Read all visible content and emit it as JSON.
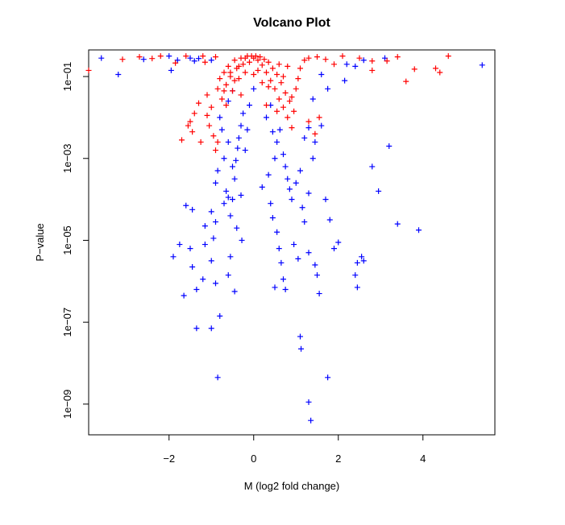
{
  "chart_data": {
    "type": "scatter",
    "title": "Volcano Plot",
    "xlabel": "M (log2 fold change)",
    "ylabel": "P−value",
    "xlim": [
      -3.9,
      5.7
    ],
    "ylog": true,
    "ylim_log10": [
      -9.75,
      -0.35
    ],
    "x_ticks": [
      -2,
      0,
      2,
      4
    ],
    "x_tick_labels": [
      "−2",
      "0",
      "2",
      "4"
    ],
    "y_ticks_log10": [
      -1,
      -3,
      -5,
      -7,
      -9
    ],
    "y_tick_labels": [
      "1e−01",
      "1e−03",
      "1e−05",
      "1e−07",
      "1e−09"
    ],
    "grid": false,
    "legend": "none",
    "colors": {
      "significant": "#0000ff",
      "not_significant": "#ff0000"
    },
    "series": [
      {
        "color": "#0000ff",
        "points": [
          [
            -3.6,
            -0.55
          ],
          [
            -3.2,
            -0.95
          ],
          [
            -2.6,
            -0.58
          ],
          [
            -2.0,
            -0.5
          ],
          [
            -1.95,
            -0.85
          ],
          [
            -1.8,
            -0.6
          ],
          [
            -1.5,
            -0.55
          ],
          [
            -1.4,
            -0.62
          ],
          [
            -1.3,
            -0.56
          ],
          [
            -1.0,
            -0.6
          ],
          [
            -1.6,
            -4.15
          ],
          [
            -1.0,
            -4.3
          ],
          [
            -0.9,
            -4.55
          ],
          [
            -0.7,
            -4.1
          ],
          [
            -0.6,
            -3.95
          ],
          [
            -0.55,
            -4.4
          ],
          [
            -0.5,
            -3.2
          ],
          [
            -0.45,
            -3.5
          ],
          [
            -0.42,
            -3.05
          ],
          [
            -0.38,
            -2.75
          ],
          [
            -0.35,
            -2.5
          ],
          [
            -0.3,
            -2.2
          ],
          [
            -0.25,
            -1.9
          ],
          [
            -0.2,
            -2.8
          ],
          [
            -0.6,
            -2.6
          ],
          [
            -0.7,
            -3.0
          ],
          [
            -0.75,
            -2.3
          ],
          [
            -0.8,
            -2.0
          ],
          [
            -0.85,
            -3.3
          ],
          [
            -0.9,
            -3.6
          ],
          [
            -0.65,
            -3.8
          ],
          [
            -0.5,
            -4.0
          ],
          [
            -0.4,
            -4.7
          ],
          [
            -0.3,
            -3.9
          ],
          [
            -0.28,
            -5.0
          ],
          [
            -1.9,
            -5.4
          ],
          [
            -1.75,
            -5.1
          ],
          [
            -1.5,
            -5.2
          ],
          [
            -1.45,
            -5.65
          ],
          [
            -1.2,
            -5.95
          ],
          [
            -1.15,
            -5.1
          ],
          [
            -1.0,
            -5.5
          ],
          [
            -0.9,
            -6.05
          ],
          [
            -0.6,
            -5.85
          ],
          [
            -0.55,
            -5.4
          ],
          [
            -0.45,
            -6.25
          ],
          [
            -1.65,
            -6.35
          ],
          [
            -1.35,
            -6.2
          ],
          [
            -0.8,
            -6.85
          ],
          [
            -1.0,
            -7.15
          ],
          [
            -1.35,
            -7.15
          ],
          [
            -0.85,
            -8.35
          ],
          [
            -1.45,
            -4.25
          ],
          [
            -1.15,
            -4.65
          ],
          [
            -0.95,
            -4.95
          ],
          [
            0.2,
            -3.7
          ],
          [
            0.35,
            -3.4
          ],
          [
            0.5,
            -3.0
          ],
          [
            0.55,
            -2.6
          ],
          [
            0.62,
            -2.3
          ],
          [
            0.7,
            -2.9
          ],
          [
            0.75,
            -3.2
          ],
          [
            0.8,
            -3.5
          ],
          [
            0.85,
            -3.75
          ],
          [
            0.9,
            -4.0
          ],
          [
            1.0,
            -3.6
          ],
          [
            1.1,
            -3.3
          ],
          [
            1.15,
            -4.2
          ],
          [
            1.2,
            -4.55
          ],
          [
            1.3,
            -3.85
          ],
          [
            1.4,
            -3.0
          ],
          [
            1.45,
            -2.6
          ],
          [
            1.6,
            -2.2
          ],
          [
            1.7,
            -4.0
          ],
          [
            1.8,
            -4.5
          ],
          [
            1.9,
            -5.2
          ],
          [
            0.4,
            -4.1
          ],
          [
            0.45,
            -4.45
          ],
          [
            0.55,
            -4.8
          ],
          [
            0.6,
            -5.2
          ],
          [
            0.65,
            -5.55
          ],
          [
            0.7,
            -5.95
          ],
          [
            0.5,
            -6.15
          ],
          [
            0.75,
            -6.2
          ],
          [
            0.95,
            -5.1
          ],
          [
            1.05,
            -5.45
          ],
          [
            1.3,
            -5.3
          ],
          [
            1.45,
            -5.6
          ],
          [
            1.5,
            -5.85
          ],
          [
            1.55,
            -6.3
          ],
          [
            1.1,
            -7.35
          ],
          [
            1.12,
            -7.65
          ],
          [
            1.35,
            -9.4
          ],
          [
            1.3,
            -8.95
          ],
          [
            1.75,
            -8.35
          ],
          [
            2.0,
            -5.05
          ],
          [
            2.4,
            -5.85
          ],
          [
            2.45,
            -5.55
          ],
          [
            2.55,
            -5.4
          ],
          [
            2.6,
            -5.5
          ],
          [
            2.45,
            -6.15
          ],
          [
            2.8,
            -3.2
          ],
          [
            2.95,
            -3.8
          ],
          [
            3.2,
            -2.7
          ],
          [
            3.4,
            -4.6
          ],
          [
            3.9,
            -4.75
          ],
          [
            5.4,
            -0.72
          ],
          [
            2.4,
            -0.75
          ],
          [
            2.6,
            -0.6
          ],
          [
            3.1,
            -0.55
          ],
          [
            2.15,
            -1.1
          ],
          [
            2.2,
            -0.7
          ],
          [
            1.6,
            -0.95
          ],
          [
            1.75,
            -1.3
          ],
          [
            1.4,
            -1.55
          ],
          [
            1.3,
            -2.25
          ],
          [
            1.2,
            -2.5
          ],
          [
            0.3,
            -2.0
          ],
          [
            0.4,
            -1.7
          ],
          [
            0.45,
            -2.35
          ],
          [
            -0.15,
            -2.3
          ],
          [
            -0.1,
            -1.7
          ],
          [
            0.0,
            -1.3
          ],
          [
            -0.5,
            -1.35
          ],
          [
            -0.6,
            -1.6
          ]
        ]
      },
      {
        "color": "#ff0000",
        "points": [
          [
            -3.9,
            -0.85
          ],
          [
            -3.1,
            -0.58
          ],
          [
            -2.7,
            -0.52
          ],
          [
            -2.4,
            -0.56
          ],
          [
            -2.2,
            -0.5
          ],
          [
            -1.85,
            -0.67
          ],
          [
            -1.6,
            -0.5
          ],
          [
            -1.2,
            -0.5
          ],
          [
            -1.15,
            -0.65
          ],
          [
            -0.9,
            -0.52
          ],
          [
            -1.5,
            -2.1
          ],
          [
            -1.45,
            -2.35
          ],
          [
            -1.4,
            -1.9
          ],
          [
            -1.3,
            -1.65
          ],
          [
            -1.25,
            -2.6
          ],
          [
            -1.1,
            -1.45
          ],
          [
            -1.05,
            -2.2
          ],
          [
            -1.0,
            -1.75
          ],
          [
            -0.95,
            -2.45
          ],
          [
            -0.85,
            -1.3
          ],
          [
            -0.8,
            -1.05
          ],
          [
            -0.75,
            -1.55
          ],
          [
            -0.7,
            -0.9
          ],
          [
            -0.65,
            -1.2
          ],
          [
            -0.6,
            -0.75
          ],
          [
            -0.55,
            -1.0
          ],
          [
            -0.5,
            -1.35
          ],
          [
            -0.45,
            -0.6
          ],
          [
            -0.4,
            -0.8
          ],
          [
            -0.35,
            -1.05
          ],
          [
            -0.3,
            -0.55
          ],
          [
            -0.25,
            -0.7
          ],
          [
            -0.2,
            -0.9
          ],
          [
            -0.15,
            -0.5
          ],
          [
            -0.1,
            -0.65
          ],
          [
            -0.05,
            -0.5
          ],
          [
            0.0,
            -0.55
          ],
          [
            0.05,
            -0.5
          ],
          [
            0.1,
            -0.6
          ],
          [
            0.15,
            -0.52
          ],
          [
            0.2,
            -0.72
          ],
          [
            0.25,
            -0.58
          ],
          [
            0.3,
            -0.9
          ],
          [
            0.35,
            -0.65
          ],
          [
            0.4,
            -1.1
          ],
          [
            0.45,
            -0.8
          ],
          [
            0.5,
            -1.3
          ],
          [
            0.55,
            -0.95
          ],
          [
            0.6,
            -1.55
          ],
          [
            0.65,
            -1.15
          ],
          [
            0.7,
            -1.75
          ],
          [
            0.75,
            -1.4
          ],
          [
            0.8,
            -2.0
          ],
          [
            0.85,
            -1.6
          ],
          [
            0.9,
            -2.25
          ],
          [
            0.95,
            -1.85
          ],
          [
            1.0,
            -1.3
          ],
          [
            1.05,
            -1.05
          ],
          [
            1.1,
            -0.8
          ],
          [
            1.2,
            -0.6
          ],
          [
            1.3,
            -0.55
          ],
          [
            1.5,
            -0.52
          ],
          [
            1.7,
            -0.58
          ],
          [
            1.9,
            -0.7
          ],
          [
            2.1,
            -0.5
          ],
          [
            2.5,
            -0.55
          ],
          [
            2.8,
            -0.62
          ],
          [
            3.15,
            -0.62
          ],
          [
            3.4,
            -0.52
          ],
          [
            3.6,
            -1.12
          ],
          [
            3.8,
            -0.82
          ],
          [
            4.3,
            -0.8
          ],
          [
            4.4,
            -0.9
          ],
          [
            4.6,
            -0.5
          ],
          [
            2.8,
            -0.85
          ],
          [
            -0.85,
            -2.6
          ],
          [
            -0.9,
            -2.8
          ],
          [
            -1.7,
            -2.55
          ],
          [
            -1.55,
            -2.2
          ],
          [
            -1.1,
            -1.95
          ],
          [
            -0.65,
            -1.7
          ],
          [
            0.3,
            -1.7
          ],
          [
            0.55,
            -1.85
          ],
          [
            0.9,
            -1.5
          ],
          [
            1.3,
            -2.1
          ],
          [
            1.45,
            -2.4
          ],
          [
            1.55,
            -2.0
          ],
          [
            -0.2,
            -0.55
          ],
          [
            0.1,
            -0.85
          ],
          [
            0.35,
            -1.25
          ],
          [
            -0.45,
            -1.1
          ],
          [
            -0.7,
            -1.35
          ],
          [
            -0.3,
            -1.45
          ],
          [
            0.0,
            -0.95
          ],
          [
            0.2,
            -1.15
          ],
          [
            0.6,
            -0.7
          ],
          [
            0.8,
            -0.75
          ],
          [
            -0.55,
            -0.9
          ],
          [
            -0.35,
            -0.75
          ],
          [
            0.7,
            -1.0
          ]
        ]
      }
    ]
  }
}
